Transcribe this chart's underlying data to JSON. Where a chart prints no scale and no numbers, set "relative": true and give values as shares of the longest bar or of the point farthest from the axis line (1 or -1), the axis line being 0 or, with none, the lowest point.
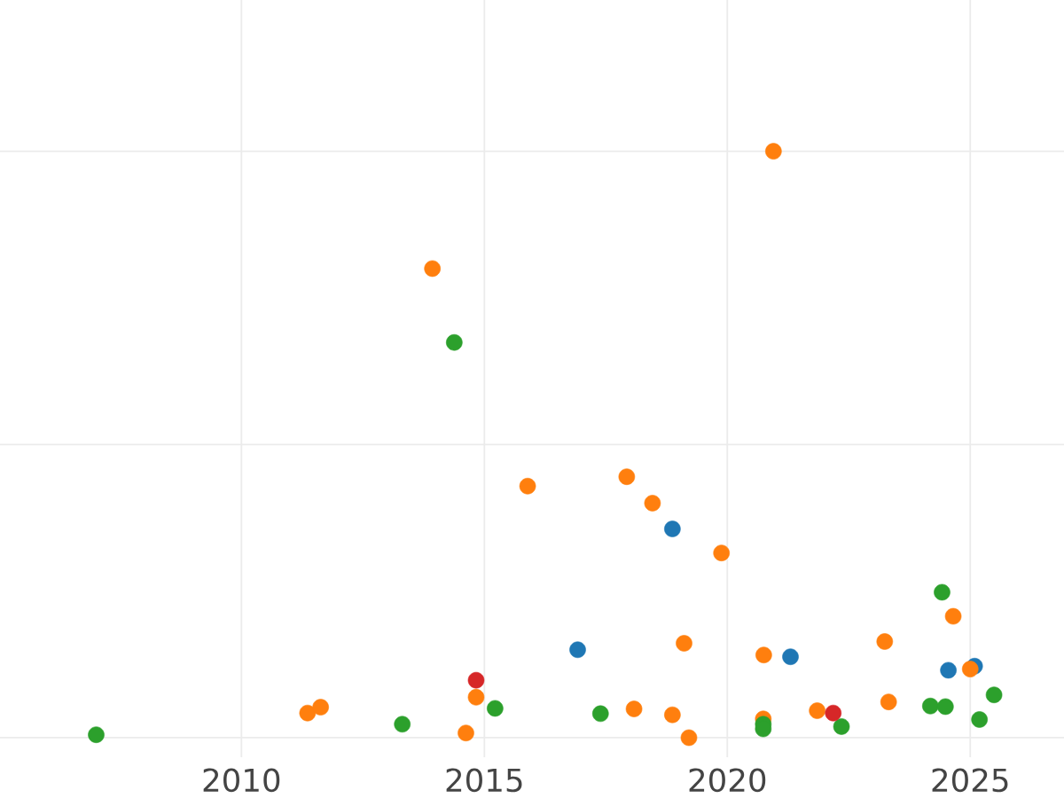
{
  "chart_data": {
    "type": "scatter",
    "relative": true,
    "grid": true,
    "xlim": [
      2005.03,
      2026.93
    ],
    "xticks": [
      2010,
      2015,
      2020,
      2025
    ],
    "series": [
      {
        "color": "#1f77b4",
        "x": [
          2016.92,
          2018.87,
          2021.3,
          2024.55,
          2025.09
        ],
        "values": [
          0.15,
          0.356,
          0.138,
          0.115,
          0.122
        ]
      },
      {
        "color": "#ff7f0e",
        "x": [
          2011.36,
          2011.63,
          2013.93,
          2014.62,
          2014.83,
          2015.89,
          2017.93,
          2018.08,
          2018.46,
          2018.87,
          2019.11,
          2019.21,
          2019.88,
          2020.74,
          2020.75,
          2020.95,
          2021.85,
          2023.24,
          2023.32,
          2024.65,
          2025.0
        ],
        "values": [
          0.042,
          0.052,
          0.8,
          0.008,
          0.069,
          0.429,
          0.445,
          0.049,
          0.4,
          0.039,
          0.161,
          0,
          0.315,
          0.032,
          0.141,
          1,
          0.046,
          0.164,
          0.061,
          0.207,
          0.117
        ]
      },
      {
        "color": "#2ca02c",
        "x": [
          2007.01,
          2013.31,
          2014.38,
          2015.22,
          2017.39,
          2020.74,
          2020.74,
          2022.35,
          2024.18,
          2024.42,
          2024.49,
          2025.19,
          2025.49
        ],
        "values": [
          0.005,
          0.023,
          0.674,
          0.05,
          0.041,
          0.023,
          0.015,
          0.019,
          0.054,
          0.248,
          0.053,
          0.031,
          0.073
        ]
      },
      {
        "color": "#d62728",
        "x": [
          2014.83,
          2022.18
        ],
        "values": [
          0.098,
          0.042
        ]
      }
    ]
  }
}
